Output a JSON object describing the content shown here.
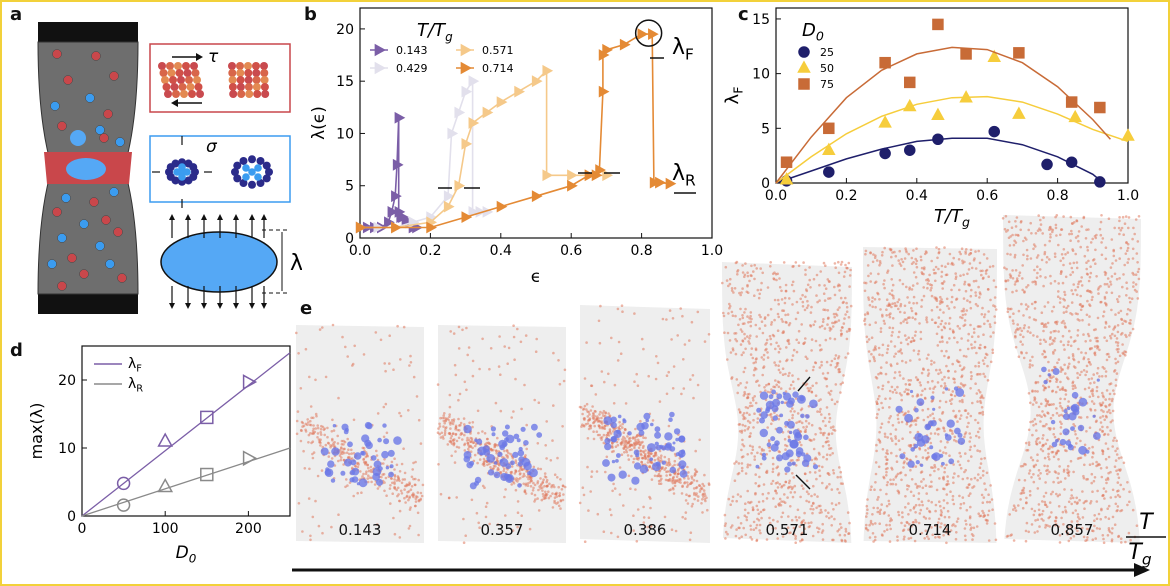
{
  "panel_letters": [
    "a",
    "b",
    "c",
    "d",
    "e"
  ],
  "panel_a": {
    "tau_label": "τ",
    "sigma_label": "σ",
    "lambda_label": "λ",
    "colors": {
      "body": "#6e6e6e",
      "red_band": "#c9474b",
      "red_particle": "#c9474b",
      "blue_particle": "#3b9cf0",
      "ellipse": "#55a8f5"
    }
  },
  "chart_data": [
    {
      "panel": "b",
      "type": "line",
      "legend_title": "T/T_g",
      "xlabel": "ϵ",
      "ylabel": "λ(ϵ)",
      "xlim": [
        0,
        1.0
      ],
      "ylim": [
        0,
        22
      ],
      "xticks": [
        "0.0",
        "0.2",
        "0.4",
        "0.6",
        "0.8",
        "1.0"
      ],
      "yticks": [
        "0",
        "5",
        "10",
        "15",
        "20"
      ],
      "annotations": [
        "λ_F",
        "λ_R"
      ],
      "series": [
        {
          "name": "0.143",
          "color": "#7b5ea7",
          "x": [
            0.0,
            0.02,
            0.04,
            0.06,
            0.08,
            0.09,
            0.1,
            0.105,
            0.11,
            0.11,
            0.115,
            0.12,
            0.13,
            0.14,
            0.15,
            0.16
          ],
          "y": [
            1,
            1,
            1,
            1,
            1.5,
            2.5,
            4,
            7,
            11.5,
            2.5,
            2,
            2,
            1.5,
            1.5,
            1,
            1
          ]
        },
        {
          "name": "0.429",
          "color": "#e2e0ec",
          "x": [
            0.0,
            0.05,
            0.1,
            0.15,
            0.2,
            0.25,
            0.26,
            0.28,
            0.3,
            0.32,
            0.32,
            0.34,
            0.36
          ],
          "y": [
            1,
            1,
            1,
            1.5,
            2,
            4,
            10,
            12,
            14,
            15,
            2.5,
            2.5,
            2.5
          ]
        },
        {
          "name": "0.571",
          "color": "#f5c98a",
          "x": [
            0.0,
            0.1,
            0.2,
            0.25,
            0.28,
            0.3,
            0.32,
            0.36,
            0.4,
            0.45,
            0.5,
            0.53,
            0.53,
            0.6,
            0.65,
            0.7
          ],
          "y": [
            1,
            1,
            1.5,
            3,
            5,
            9,
            11,
            12,
            13,
            14,
            15,
            16,
            6,
            6,
            6,
            6
          ]
        },
        {
          "name": "0.714",
          "color": "#e48a35",
          "x": [
            0.0,
            0.1,
            0.2,
            0.3,
            0.4,
            0.5,
            0.6,
            0.65,
            0.67,
            0.68,
            0.69,
            0.69,
            0.7,
            0.75,
            0.8,
            0.83,
            0.835,
            0.85,
            0.88
          ],
          "y": [
            1,
            1,
            1,
            2,
            3,
            4,
            5,
            6,
            6,
            6.5,
            14,
            17.5,
            18,
            18.5,
            19.5,
            19.5,
            5.3,
            5.3,
            5.2
          ]
        }
      ]
    },
    {
      "panel": "c",
      "type": "scatter",
      "legend_title": "D_0",
      "xlabel": "T/T_g",
      "ylabel": "λ_F",
      "xlim": [
        0,
        1.0
      ],
      "ylim": [
        0,
        16
      ],
      "xticks": [
        "0.0",
        "0.2",
        "0.4",
        "0.6",
        "0.8",
        "1.0"
      ],
      "yticks": [
        "0",
        "5",
        "10",
        "15"
      ],
      "series": [
        {
          "name": "25",
          "color": "#1f1f6b",
          "marker": "circle",
          "x": [
            0.03,
            0.15,
            0.31,
            0.38,
            0.46,
            0.62,
            0.77,
            0.84,
            0.92
          ],
          "y": [
            0.2,
            1,
            2.7,
            3,
            4,
            4.7,
            1.7,
            1.9,
            0.1
          ],
          "fit": [
            0,
            0.1,
            0.2,
            0.3,
            0.4,
            0.5,
            0.6,
            0.7,
            0.8,
            0.9,
            0.93
          ],
          "fit_y": [
            0,
            1.1,
            2.2,
            3.1,
            3.8,
            4.1,
            4.1,
            3.5,
            2.4,
            0.8,
            0
          ]
        },
        {
          "name": "50",
          "color": "#f6cd3c",
          "marker": "triangle",
          "x": [
            0.03,
            0.15,
            0.31,
            0.38,
            0.46,
            0.54,
            0.62,
            0.69,
            0.85,
            1.0
          ],
          "y": [
            0.3,
            3,
            5.5,
            7,
            6.2,
            7.8,
            11.5,
            6.3,
            6,
            4.3
          ],
          "fit": [
            0,
            0.1,
            0.2,
            0.3,
            0.4,
            0.5,
            0.6,
            0.7,
            0.8,
            0.9,
            1.0
          ],
          "fit_y": [
            0,
            2.4,
            4.5,
            6.1,
            7.2,
            7.8,
            7.9,
            7.4,
            6.3,
            4.9,
            3.8
          ]
        },
        {
          "name": "75",
          "color": "#c86b37",
          "marker": "square",
          "x": [
            0.03,
            0.15,
            0.31,
            0.38,
            0.46,
            0.54,
            0.69,
            0.84,
            0.92
          ],
          "y": [
            1.9,
            5,
            11,
            9.2,
            14.5,
            11.8,
            11.9,
            7.4,
            6.9
          ],
          "fit": [
            0,
            0.1,
            0.2,
            0.3,
            0.4,
            0.5,
            0.6,
            0.7,
            0.8,
            0.9,
            0.95
          ],
          "fit_y": [
            0,
            4.2,
            7.8,
            10.3,
            11.8,
            12.4,
            12.2,
            11,
            8.8,
            5.8,
            4
          ]
        }
      ]
    },
    {
      "panel": "d",
      "type": "scatter",
      "xlabel": "D_0",
      "ylabel": "max(λ)",
      "xlim": [
        0,
        250
      ],
      "ylim": [
        0,
        25
      ],
      "xticks": [
        "0",
        "100",
        "200"
      ],
      "yticks": [
        "0",
        "10",
        "20"
      ],
      "series": [
        {
          "name": "λ_F",
          "color": "#7b5ea7",
          "x": [
            50,
            100,
            150,
            200
          ],
          "y": [
            4.8,
            11,
            14.5,
            19.7
          ],
          "markers": [
            "circle",
            "triangle",
            "square",
            "triangle-right"
          ],
          "fit": [
            0,
            250
          ],
          "fit_y": [
            0,
            24
          ]
        },
        {
          "name": "λ_R",
          "color": "#8a8a8a",
          "x": [
            50,
            100,
            150,
            200
          ],
          "y": [
            1.6,
            4.3,
            6.1,
            8.5
          ],
          "markers": [
            "circle",
            "triangle",
            "square",
            "triangle-right"
          ],
          "fit": [
            0,
            250
          ],
          "fit_y": [
            0,
            10
          ]
        }
      ]
    }
  ],
  "panel_e": {
    "axis_label_top": "T",
    "axis_label_bottom": "T_g",
    "samples": [
      "0.143",
      "0.357",
      "0.386",
      "0.571",
      "0.714",
      "0.857"
    ],
    "colors": {
      "red_particles": "#e07a5f",
      "blue_clusters": "#6b78e6",
      "background": "#eeeeee"
    }
  }
}
